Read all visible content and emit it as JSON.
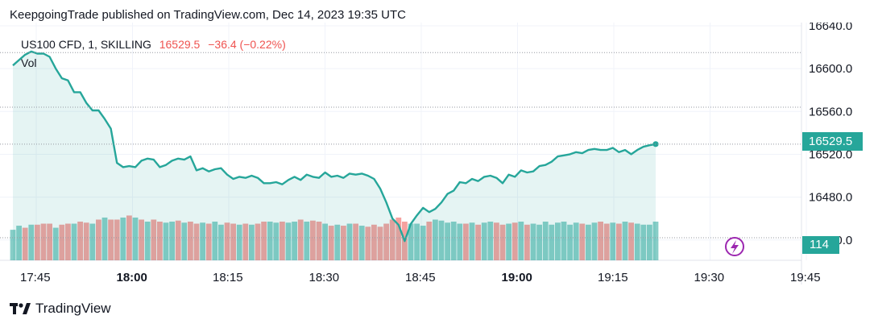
{
  "header": {
    "published": "KeepgoingTrade published on TradingView.com, Dec 14, 2023 19:35 UTC"
  },
  "legend": {
    "symbol": "US100 CFD, 1, SKILLING",
    "price": "16529.5",
    "change": "−36.4 (−0.22%)",
    "vol_label": "Vol"
  },
  "tags": {
    "last_price": "16529.5",
    "last_volume": "114"
  },
  "footer": {
    "brand": "TradingView"
  },
  "colors": {
    "line": "#26a69a",
    "up": "#26a69a",
    "down": "#ef5350",
    "fill": "#26a69a"
  },
  "icons": {
    "brand": "tradingview-logo-icon",
    "flash": "lightning-icon"
  },
  "chart_data": {
    "type": "area",
    "y_ticks": [
      "16640.0",
      "16600.0",
      "16560.0",
      "16520.0",
      "16480.0",
      "16440.0"
    ],
    "y_tick_values": [
      16640,
      16600,
      16560,
      16520,
      16480,
      16440
    ],
    "ylim": [
      16421,
      16643
    ],
    "x_ticks": [
      {
        "label": "17:45",
        "bold": false
      },
      {
        "label": "18:00",
        "bold": true
      },
      {
        "label": "18:15",
        "bold": false
      },
      {
        "label": "18:30",
        "bold": false
      },
      {
        "label": "18:45",
        "bold": false
      },
      {
        "label": "19:00",
        "bold": true
      },
      {
        "label": "19:15",
        "bold": false
      },
      {
        "label": "19:30",
        "bold": false
      },
      {
        "label": "19:45",
        "bold": false
      }
    ],
    "x_tick_minutes": [
      -5,
      10,
      25,
      40,
      55,
      70,
      85,
      100,
      115
    ],
    "close": [
      16603,
      16608,
      16613,
      16616,
      16614,
      16614,
      16611,
      16600,
      16591,
      16589,
      16578,
      16578,
      16568,
      16561,
      16561,
      16553,
      16544,
      16512,
      16508,
      16509,
      16508,
      16514,
      16516,
      16515,
      16508,
      16510,
      16514,
      16516,
      16515,
      16518,
      16505,
      16507,
      16504,
      16506,
      16507,
      16501,
      16497,
      16499,
      16498,
      16500,
      16498,
      16493,
      16493,
      16494,
      16492,
      16496,
      16499,
      16496,
      16501,
      16499,
      16498,
      16503,
      16499,
      16500,
      16498,
      16502,
      16501,
      16502,
      16500,
      16497,
      16488,
      16475,
      16460,
      16454,
      16439,
      16455,
      16463,
      16470,
      16466,
      16469,
      16475,
      16483,
      16486,
      16494,
      16493,
      16497,
      16495,
      16499,
      16500,
      16498,
      16493,
      16501,
      16499,
      16505,
      16503,
      16504,
      16509,
      16510,
      16513,
      16518,
      16519,
      16520,
      16522,
      16521,
      16524,
      16525,
      16524,
      16524,
      16526,
      16522,
      16524,
      16520,
      16524,
      16527,
      16528.5,
      16529.5
    ],
    "volume": [
      30,
      34,
      32,
      35,
      35,
      36,
      36,
      32,
      35,
      36,
      36,
      38,
      37,
      36,
      40,
      42,
      40,
      40,
      42,
      44,
      42,
      40,
      38,
      40,
      38,
      37,
      38,
      39,
      37,
      38,
      36,
      37,
      36,
      38,
      35,
      37,
      36,
      35,
      36,
      35,
      36,
      38,
      38,
      37,
      38,
      37,
      38,
      40,
      38,
      39,
      38,
      36,
      34,
      35,
      34,
      36,
      36,
      34,
      33,
      35,
      33,
      36,
      40,
      42,
      38,
      36,
      36,
      34,
      38,
      40,
      39,
      37,
      38,
      36,
      36,
      37,
      35,
      37,
      38,
      37,
      35,
      36,
      37,
      38,
      35,
      36,
      35,
      38,
      35,
      37,
      38,
      35,
      37,
      36,
      35,
      37,
      38,
      36,
      37,
      36,
      38,
      37,
      36,
      35,
      35,
      38
    ],
    "volume_up": [
      1,
      1,
      0,
      1,
      0,
      0,
      0,
      1,
      0,
      0,
      1,
      0,
      0,
      1,
      0,
      1,
      0,
      0,
      1,
      0,
      1,
      0,
      1,
      0,
      0,
      1,
      1,
      0,
      1,
      0,
      0,
      1,
      0,
      1,
      1,
      0,
      0,
      1,
      0,
      1,
      0,
      0,
      1,
      1,
      0,
      1,
      1,
      0,
      1,
      0,
      0,
      1,
      0,
      1,
      0,
      1,
      0,
      1,
      0,
      0,
      0,
      0,
      0,
      0,
      0,
      1,
      1,
      1,
      0,
      1,
      1,
      1,
      1,
      1,
      0,
      1,
      0,
      1,
      1,
      0,
      0,
      1,
      0,
      1,
      0,
      1,
      1,
      1,
      1,
      1,
      1,
      1,
      1,
      0,
      1,
      1,
      0,
      0,
      1,
      0,
      1,
      0,
      1,
      1,
      1,
      1
    ]
  }
}
